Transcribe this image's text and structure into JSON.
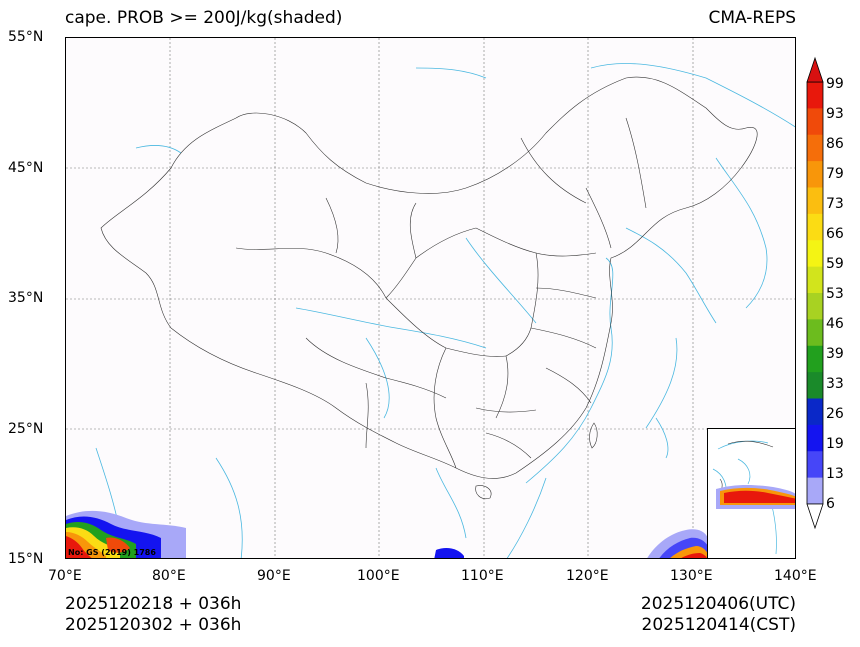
{
  "header": {
    "title_left": "cape. PROB >= 200J/kg(shaded)",
    "title_right": "CMA-REPS"
  },
  "axes": {
    "lat_labels": [
      "55°N",
      "45°N",
      "35°N",
      "25°N",
      "15°N"
    ],
    "lon_labels": [
      "70°E",
      "80°E",
      "90°E",
      "100°E",
      "110°E",
      "120°E",
      "130°E",
      "140°E"
    ]
  },
  "colorbar": {
    "labels": [
      "99",
      "93",
      "86",
      "79",
      "73",
      "66",
      "59",
      "53",
      "46",
      "39",
      "33",
      "26",
      "19",
      "13",
      "6"
    ],
    "colors": [
      "#e8180c",
      "#f04a0a",
      "#f56e0a",
      "#f8960a",
      "#fbbe10",
      "#fbdc14",
      "#f4f414",
      "#d2e41c",
      "#a8d222",
      "#6cbc1e",
      "#22a01e",
      "#1a8a2a",
      "#0a28c8",
      "#1414f0",
      "#4646f8",
      "#a8a8f8"
    ],
    "over_color": "#d81010",
    "under_color": "#ffffff"
  },
  "map": {
    "review_number": "No: GS (2019) 1786",
    "coastline_color": "#4ab8e0",
    "border_color": "#333333"
  },
  "footer": {
    "left_line1": "2025120218  +  036h",
    "left_line2": "2025120302  +  036h",
    "right_line1": "2025120406(UTC)",
    "right_line2": "2025120414(CST)"
  }
}
